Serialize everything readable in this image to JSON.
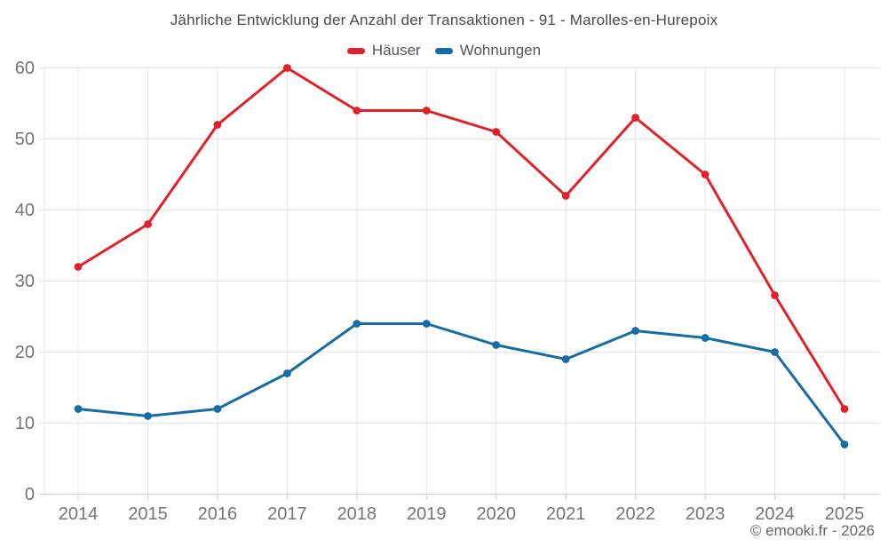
{
  "footer": "© emooki.fr - 2026",
  "chart_data": {
    "type": "line",
    "title": "Jährliche Entwicklung der Anzahl der Transaktionen - 91 - Marolles-en-Hurepoix",
    "categories": [
      "2014",
      "2015",
      "2016",
      "2017",
      "2018",
      "2019",
      "2020",
      "2021",
      "2022",
      "2023",
      "2024",
      "2025"
    ],
    "series": [
      {
        "name": "Häuser",
        "color": "#e02228",
        "values": [
          32,
          38,
          52,
          60,
          54,
          54,
          51,
          42,
          53,
          45,
          28,
          12
        ]
      },
      {
        "name": "Wohnungen",
        "color": "#166ca5",
        "values": [
          12,
          11,
          12,
          17,
          24,
          24,
          21,
          19,
          23,
          22,
          20,
          7
        ]
      }
    ],
    "xlabel": "",
    "ylabel": "",
    "ylim": [
      0,
      60
    ],
    "ytick_step": 10,
    "yticks": [
      0,
      10,
      20,
      30,
      40,
      50,
      60
    ],
    "grid": true,
    "legend_position": "top",
    "axis_label_color": "#757575",
    "grid_color": "#e4e4e4",
    "axis_line_color": "#cfcfcf"
  }
}
